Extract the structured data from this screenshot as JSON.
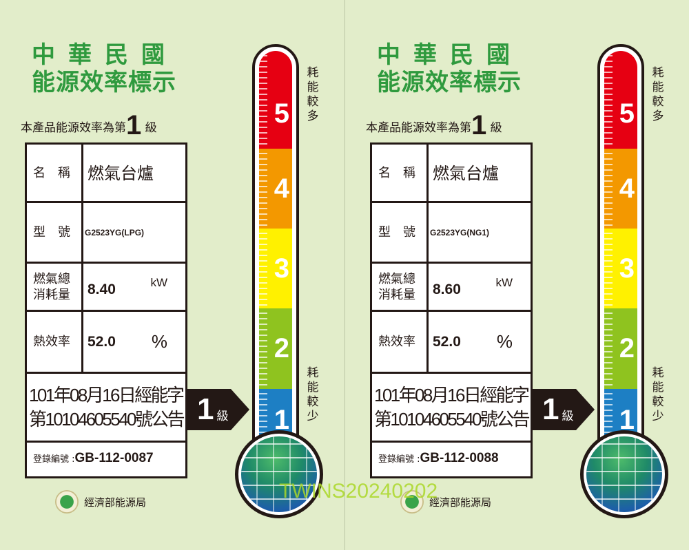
{
  "labels": [
    {
      "title_line1": "中華民國",
      "title_line2": "能源效率標示",
      "subtitle": "本產品能源效率為第",
      "grade": "1",
      "grade_unit": "級",
      "name_key": "名　稱",
      "name_value": "燃氣台爐",
      "model_key": "型　號",
      "model_value": "G2523YG(LPG)",
      "consumption_key": "燃氣總消耗量",
      "consumption_value": "8.40",
      "consumption_unit": "kW",
      "efficiency_key": "熱效率",
      "efficiency_value": "52.0",
      "efficiency_unit": "%",
      "notice_line1": "101年08月16日經能字",
      "notice_line2": "第10104605540號公告",
      "reg_key": "登錄編號 :",
      "reg_value": "GB-112-0087",
      "agency": "經濟部能源局",
      "scale": [
        "5",
        "4",
        "3",
        "2",
        "1"
      ],
      "more": "耗能較多",
      "less": "耗能較少"
    },
    {
      "title_line1": "中華民國",
      "title_line2": "能源效率標示",
      "subtitle": "本產品能源效率為第",
      "grade": "1",
      "grade_unit": "級",
      "name_key": "名　稱",
      "name_value": "燃氣台爐",
      "model_key": "型　號",
      "model_value": "G2523YG(NG1)",
      "consumption_key": "燃氣總消耗量",
      "consumption_value": "8.60",
      "consumption_unit": "kW",
      "efficiency_key": "熱效率",
      "efficiency_value": "52.0",
      "efficiency_unit": "%",
      "notice_line1": "101年08月16日經能字",
      "notice_line2": "第10104605540號公告",
      "reg_key": "登錄編號 :",
      "reg_value": "GB-112-0088",
      "agency": "經濟部能源局",
      "scale": [
        "5",
        "4",
        "3",
        "2",
        "1"
      ],
      "more": "耗能較多",
      "less": "耗能較少"
    }
  ],
  "scale_colors": [
    "#e60012",
    "#f39800",
    "#fff100",
    "#8fc31f",
    "#1d7fc4"
  ],
  "watermark": "TWINS20240202"
}
